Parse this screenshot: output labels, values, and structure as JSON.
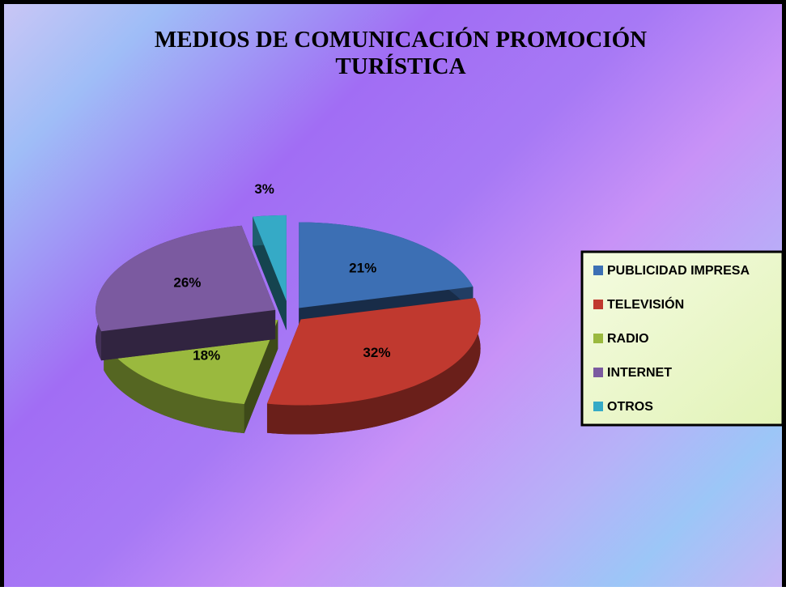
{
  "chart_data": {
    "type": "pie",
    "title": "MEDIOS DE COMUNICACIÓN PROMOCIÓN TURÍSTICA",
    "categories": [
      "PUBLICIDAD IMPRESA",
      "TELEVISIÓN",
      "RADIO",
      "INTERNET",
      "OTROS"
    ],
    "values": [
      21,
      32,
      18,
      26,
      3
    ],
    "value_labels": [
      "21%",
      "32%",
      "18%",
      "26%",
      "3%"
    ],
    "colors": [
      "#3c6fb4",
      "#c0392f",
      "#9ab93e",
      "#7b5aa0",
      "#35aac6"
    ],
    "legend": "right"
  }
}
